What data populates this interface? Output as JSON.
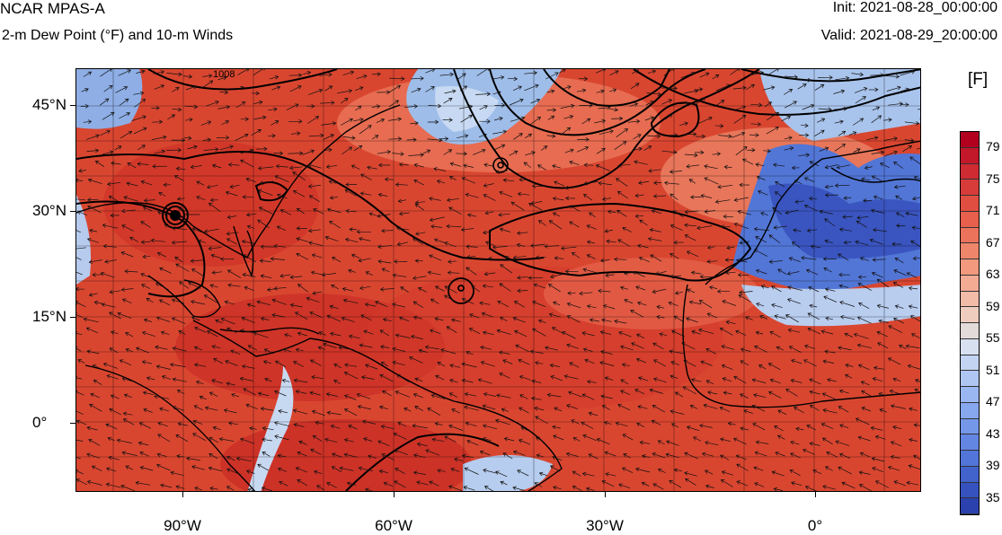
{
  "header": {
    "title": "NCAR MPAS-A",
    "subtitle": "2-m Dew Point (°F) and 10-m Winds",
    "init": "Init: 2021-08-28_00:00:00",
    "valid": "Valid: 2021-08-29_20:00:00"
  },
  "map": {
    "lat_labels": [
      "45°N",
      "30°N",
      "15°N",
      "0°"
    ],
    "lon_labels": [
      "90°W",
      "60°W",
      "30°W",
      "0°"
    ],
    "contour_label": "1008"
  },
  "colorbar": {
    "units": "[F]",
    "labels": [
      "79",
      "75",
      "71",
      "67",
      "63",
      "59",
      "55",
      "51",
      "47",
      "43",
      "39",
      "35"
    ],
    "colors": [
      "#b2001f",
      "#c3172a",
      "#cf2b33",
      "#d83c3a",
      "#e04e42",
      "#e6604d",
      "#ec735b",
      "#ef866c",
      "#f2997e",
      "#f3ab93",
      "#f2bca9",
      "#eecdbf",
      "#e3dbd9",
      "#d6e0ef",
      "#c3d4f2",
      "#afc6f3",
      "#9bb7f2",
      "#87a7ef",
      "#7497ea",
      "#6286e2",
      "#5175d8",
      "#4263cc",
      "#3552be",
      "#2a41ae"
    ]
  }
}
